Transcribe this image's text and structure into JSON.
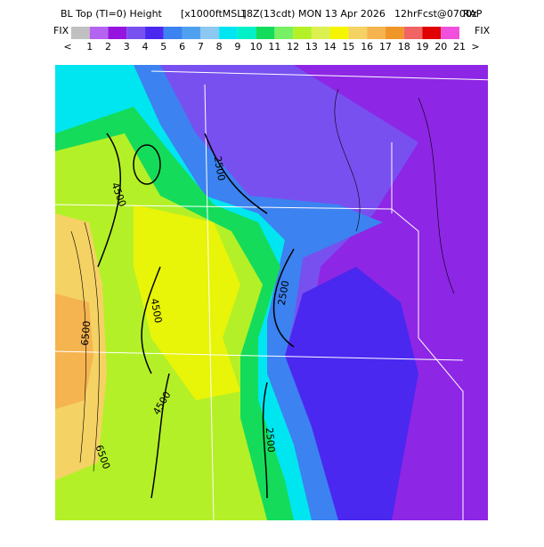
{
  "header": {
    "title": "BL Top (TI=0) Height",
    "units": "[x1000ftMSL]",
    "valid": "18Z(13cdt) MON 13 Apr 2026",
    "forecast": "12hrFcst@0700z",
    "model": "RAP"
  },
  "colorbar": {
    "left_label": "FIX",
    "right_label": "FIX",
    "colors": [
      "#c0c0c0",
      "#b464f0",
      "#9614e0",
      "#7850f0",
      "#4a28f0",
      "#3c82f0",
      "#50a0f0",
      "#8cc8f0",
      "#00e6f0",
      "#00f0c8",
      "#14dc5a",
      "#78f064",
      "#b4f028",
      "#dcf050",
      "#f5f500",
      "#f5d264",
      "#f5b450",
      "#f09628",
      "#f06464",
      "#e00000",
      "#f050dc"
    ],
    "labels": [
      "<",
      "1",
      "2",
      "3",
      "4",
      "5",
      "6",
      "7",
      "8",
      "9",
      "10",
      "11",
      "12",
      "13",
      "14",
      "15",
      "16",
      "17",
      "18",
      "19",
      "20",
      "21",
      ">"
    ]
  },
  "map": {
    "contour_labels": [
      "2500",
      "4500",
      "2500",
      "4500",
      "6500",
      "4500",
      "2500",
      "6500"
    ]
  }
}
